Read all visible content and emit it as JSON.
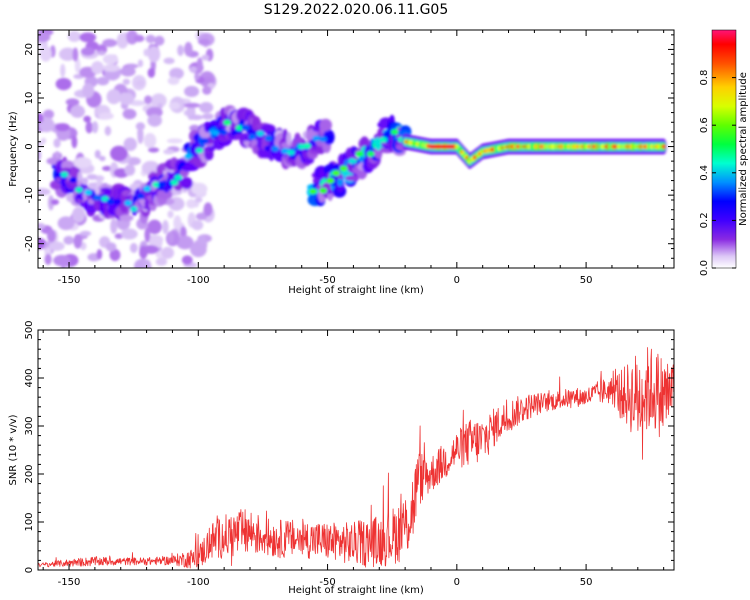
{
  "title": "S129.2022.020.06.11.G05",
  "colors": {
    "snr_line": "#ee3333",
    "axis": "#000000",
    "background": "#ffffff"
  },
  "chart_data": [
    {
      "type": "heatmap",
      "xlabel": "Height of straight line (km)",
      "ylabel": "Frequency (Hz)",
      "xlim": [
        -162,
        84
      ],
      "ylim": [
        -25,
        24
      ],
      "xticks": [
        -150,
        -100,
        -50,
        0,
        50
      ],
      "yticks": [
        -20,
        -10,
        0,
        10,
        20
      ],
      "colorbar": {
        "label": "Normalized spectral amplitude",
        "range": [
          0.0,
          1.0
        ],
        "ticks": [
          "0.0",
          "0.2",
          "0.4",
          "0.6",
          "0.8"
        ],
        "colormap": [
          "#ffffff",
          "#cfb2f4",
          "#8a2be2",
          "#5a00ff",
          "#0000ff",
          "#00c8ff",
          "#00ffb0",
          "#20ff20",
          "#c8ff00",
          "#ffff00",
          "#ff8800",
          "#ff0000",
          "#ff1070"
        ]
      },
      "features": [
        {
          "label": "scattered low-amplitude noise",
          "x_range": [
            -162,
            -95
          ],
          "freq_range": [
            -25,
            24
          ],
          "amplitude": 0.1
        },
        {
          "label": "descending branch",
          "x": [
            -155,
            -140,
            -125,
            -115,
            -105
          ],
          "freq": [
            -5,
            -11,
            -12,
            -8,
            -5
          ],
          "amplitude": 0.3
        },
        {
          "label": "upper branch",
          "x": [
            -103,
            -95,
            -88,
            -80,
            -70,
            -60,
            -50
          ],
          "freq": [
            -2,
            2,
            5,
            3,
            0,
            -1,
            3
          ],
          "amplitude": 0.35
        },
        {
          "label": "rising branch",
          "x": [
            -55,
            -45,
            -38,
            -30,
            -25,
            -20
          ],
          "freq": [
            -9,
            -6,
            -3,
            1,
            3,
            1
          ],
          "amplitude": 0.45
        },
        {
          "label": "strong carrier line",
          "x": [
            -20,
            -10,
            0,
            5,
            10,
            20,
            40,
            60,
            80
          ],
          "freq": [
            1,
            0,
            0,
            -3,
            -1,
            0,
            0,
            0,
            0
          ],
          "amplitude": 0.95
        }
      ]
    },
    {
      "type": "line",
      "xlabel": "Height of straight line (km)",
      "ylabel": "SNR (10 * v/v)",
      "xlim": [
        -162,
        84
      ],
      "ylim": [
        0,
        500
      ],
      "xticks": [
        -150,
        -100,
        -50,
        0,
        50
      ],
      "yticks": [
        0,
        100,
        200,
        300,
        400,
        500
      ],
      "series": [
        {
          "x": [
            -162,
            -150,
            -140,
            -130,
            -120,
            -110,
            -100,
            -95,
            -90,
            -85,
            -80,
            -75,
            -70,
            -60,
            -50,
            -40,
            -30,
            -25,
            -20,
            -17,
            -15,
            -10,
            -5,
            0,
            5,
            10,
            15,
            20,
            25,
            30,
            35,
            40,
            45,
            50,
            55,
            60,
            65,
            70,
            75,
            80,
            84
          ],
          "y": [
            10,
            15,
            18,
            18,
            18,
            20,
            25,
            60,
            70,
            75,
            80,
            70,
            65,
            65,
            60,
            55,
            60,
            70,
            90,
            130,
            190,
            200,
            225,
            250,
            265,
            270,
            300,
            320,
            335,
            345,
            350,
            355,
            360,
            360,
            370,
            375,
            365,
            360,
            380,
            360,
            380
          ],
          "noise": [
            4,
            8,
            10,
            8,
            8,
            10,
            25,
            40,
            45,
            50,
            50,
            40,
            40,
            40,
            40,
            45,
            55,
            60,
            70,
            80,
            60,
            40,
            40,
            40,
            50,
            50,
            40,
            35,
            30,
            25,
            20,
            20,
            20,
            20,
            25,
            30,
            60,
            100,
            90,
            90,
            60
          ]
        }
      ]
    }
  ]
}
